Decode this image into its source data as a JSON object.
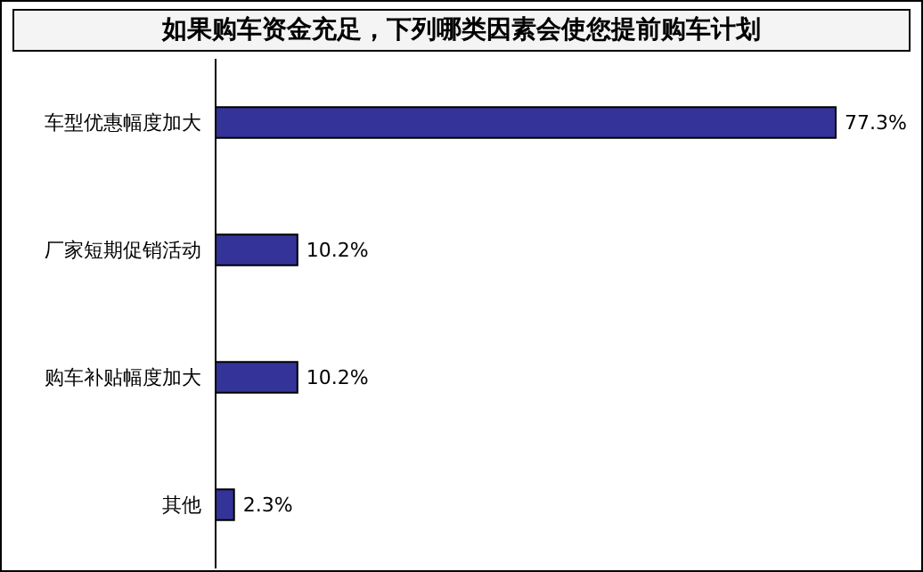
{
  "chart_data": {
    "type": "bar",
    "orientation": "horizontal",
    "title": "如果购车资金充足，下列哪类因素会使您提前购车计划",
    "categories": [
      "车型优惠幅度加大",
      "厂家短期促销活动",
      "购车补贴幅度加大",
      "其他"
    ],
    "values": [
      77.3,
      10.2,
      10.2,
      2.3
    ],
    "value_labels": [
      "77.3%",
      "10.2%",
      "10.2%",
      "2.3%"
    ],
    "color": "#333399"
  }
}
